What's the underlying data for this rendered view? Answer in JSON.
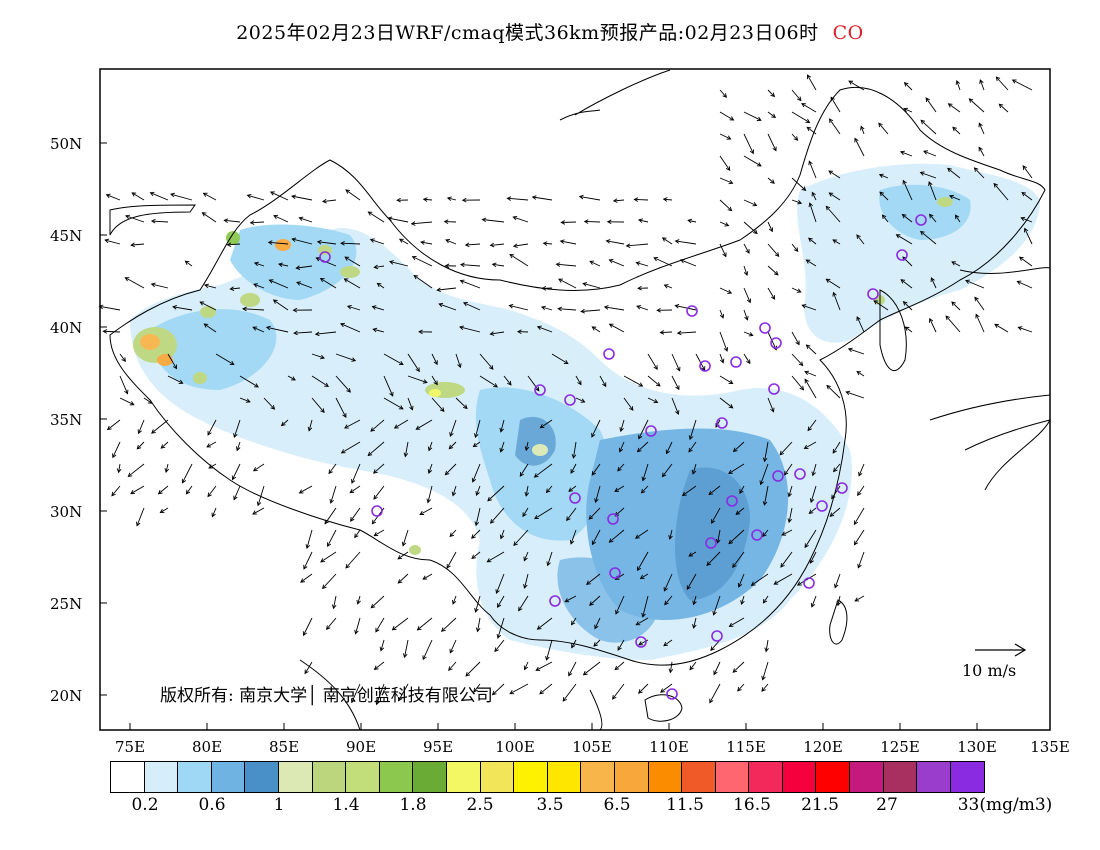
{
  "title": {
    "text": "2025年02月23日WRF/cmaq模式36km预报产品:02月23日06时",
    "pollutant": "CO",
    "pollutant_color": "#e0202a"
  },
  "map": {
    "lat_labels": [
      "50N",
      "45N",
      "40N",
      "35N",
      "30N",
      "25N",
      "20N"
    ],
    "lon_labels": [
      "75E",
      "80E",
      "85E",
      "90E",
      "95E",
      "100E",
      "105E",
      "110E",
      "115E",
      "120E",
      "125E",
      "130E",
      "135E"
    ],
    "copyright": "版权所有: 南京大学│ 南京创蓝科技有限公司",
    "wind_scale_label": "10 m/s",
    "marker_color": "#8a2be2"
  },
  "colorbar": {
    "colors": [
      "#ffffff",
      "#d6eefa",
      "#9fd8f5",
      "#6fb3e3",
      "#4a90c8",
      "#dce9b5",
      "#bcd67e",
      "#c1de7b",
      "#8dc84e",
      "#6aab36",
      "#f2f763",
      "#f3e55a",
      "#fff200",
      "#ffe600",
      "#f7b54a",
      "#f8a73a",
      "#fb8c00",
      "#f05a28",
      "#ff6670",
      "#f2295a",
      "#f5003c",
      "#ff0000",
      "#c41a7d",
      "#a83060",
      "#9a3ccc",
      "#8a2be2"
    ],
    "labels": [
      "0.2",
      "0.6",
      "1",
      "1.4",
      "1.8",
      "2.5",
      "3.5",
      "6.5",
      "11.5",
      "16.5",
      "21.5",
      "27",
      "33(mg/m3)"
    ]
  }
}
